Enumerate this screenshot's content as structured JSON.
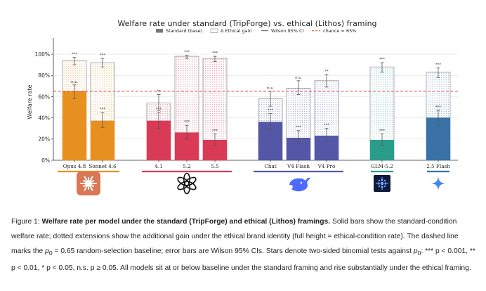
{
  "chart_data": {
    "type": "bar",
    "title": "Welfare rate under standard (TripForge) vs. ethical (Lithos) framing",
    "ylabel": "Welfare rate",
    "ylim": [
      0,
      1.1
    ],
    "y_ticks": [
      "0%",
      "20%",
      "40%",
      "60%",
      "80%",
      "100%"
    ],
    "y_tick_values": [
      0,
      0.2,
      0.4,
      0.6,
      0.8,
      1.0
    ],
    "grid": "horizontal",
    "legend_position": "top-center",
    "legend": [
      "Standard (base)",
      "Δ Ethical gain",
      "Wilson 95% CI",
      "chance = 65%"
    ],
    "chance_line": 0.65,
    "categories": [
      "Opus 4.8",
      "Sonnet 4.6",
      "4.1",
      "5.2",
      "5.5",
      "Chat",
      "V4 Flash",
      "V4 Pro",
      "GLM-5.2",
      "2.5 Flash"
    ],
    "series": [
      {
        "name": "Standard (base)",
        "values": [
          0.65,
          0.37,
          0.37,
          0.26,
          0.19,
          0.36,
          0.21,
          0.23,
          0.19,
          0.4
        ],
        "ci_low": [
          0.58,
          0.31,
          0.3,
          0.2,
          0.14,
          0.29,
          0.16,
          0.18,
          0.14,
          0.33
        ],
        "ci_high": [
          0.71,
          0.45,
          0.45,
          0.33,
          0.25,
          0.44,
          0.28,
          0.3,
          0.25,
          0.47
        ],
        "significance": [
          "n.s.",
          "***",
          "***",
          "***",
          "***",
          "***",
          "***",
          "***",
          "***",
          "***"
        ]
      },
      {
        "name": "Ethical (full height)",
        "values": [
          0.94,
          0.92,
          0.54,
          0.98,
          0.96,
          0.58,
          0.68,
          0.75,
          0.88,
          0.83
        ],
        "ci_low": [
          0.9,
          0.88,
          0.47,
          0.96,
          0.93,
          0.51,
          0.62,
          0.69,
          0.83,
          0.78
        ],
        "ci_high": [
          0.97,
          0.96,
          0.62,
          0.99,
          0.98,
          0.65,
          0.75,
          0.81,
          0.92,
          0.87
        ],
        "significance": [
          "***",
          "***",
          "**",
          "***",
          "***",
          "n.s.",
          "n.s.",
          "**",
          "***",
          "***"
        ]
      }
    ],
    "groups": [
      {
        "name": "Anthropic",
        "logo": "anthropic-logo",
        "color": "#e8901f",
        "members": [
          0,
          1
        ]
      },
      {
        "name": "OpenAI",
        "logo": "openai-logo",
        "color": "#d93a55",
        "members": [
          2,
          3,
          4
        ]
      },
      {
        "name": "DeepSeek",
        "logo": "deepseek-logo",
        "color": "#5457a6",
        "members": [
          5,
          6,
          7
        ]
      },
      {
        "name": "GLM",
        "logo": "glm-logo",
        "color": "#2a9d8a",
        "members": [
          8
        ]
      },
      {
        "name": "Gemini",
        "logo": "gemini-logo",
        "color": "#3a72a8",
        "members": [
          9
        ]
      }
    ],
    "bar_colors": [
      "#e8901f",
      "#e8901f",
      "#d93a55",
      "#d93a55",
      "#d93a55",
      "#5457a6",
      "#5457a6",
      "#5457a6",
      "#2a9d8a",
      "#3a72a8"
    ]
  },
  "caption": {
    "prefix": "Figure 1: ",
    "bold": "Welfare rate per model under the standard (TripForge) and ethical (Lithos) framings.",
    "s1": " Solid bars show the standard-condition welfare rate; dotted extensions show the additional gain under the ethical brand identity (full height = ethical-condition rate). The dashed line marks the ",
    "baseline_math": "p",
    "baseline_sub": "0",
    "baseline_value": " = 0.65",
    "s2": " random-selection baseline; error bars are Wilson 95% CIs. Stars denote two-sided binomial tests against ",
    "p0_label": "p",
    "p0_sub": "0",
    "tests": ": *** p < 0.001, ** p < 0.01, * p < 0.05, n.s. p ≥ 0.05.",
    "s3": " All models sit at or below baseline under the standard framing and rise substantially under the ethical framing."
  }
}
